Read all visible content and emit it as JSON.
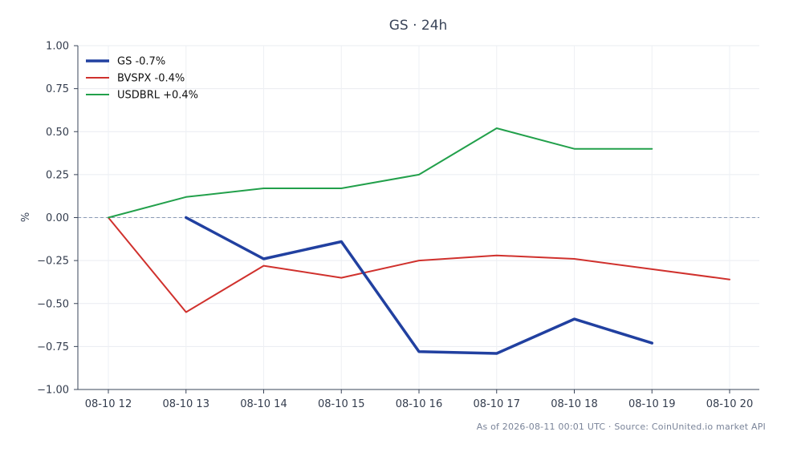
{
  "chart_data": {
    "type": "line",
    "title": "GS · 24h",
    "xlabel": "",
    "ylabel": "%",
    "x": [
      "08-10 12",
      "08-10 13",
      "08-10 14",
      "08-10 15",
      "08-10 16",
      "08-10 17",
      "08-10 18",
      "08-10 19",
      "08-10 20"
    ],
    "ylim": [
      -1.0,
      1.0
    ],
    "yticks": [
      "1.00",
      "0.75",
      "0.50",
      "0.25",
      "0.00",
      "−0.25",
      "−0.50",
      "−0.75",
      "−1.00"
    ],
    "ytick_values": [
      1.0,
      0.75,
      0.5,
      0.25,
      0.0,
      -0.25,
      -0.5,
      -0.75,
      -1.0
    ],
    "grid": true,
    "legend_position": "top-left",
    "zero_line": true,
    "series": [
      {
        "name": "GS -0.7%",
        "color": "#2140a0",
        "emphasis": true,
        "values": [
          null,
          0.0,
          -0.24,
          -0.14,
          -0.78,
          -0.79,
          -0.59,
          -0.73,
          null
        ]
      },
      {
        "name": "BVSPX -0.4%",
        "color": "#d0312d",
        "emphasis": false,
        "values": [
          0.0,
          -0.55,
          -0.28,
          -0.35,
          -0.25,
          -0.22,
          -0.24,
          -0.3,
          -0.36
        ]
      },
      {
        "name": "USDBRL +0.4%",
        "color": "#22a04b",
        "emphasis": false,
        "values": [
          0.0,
          0.12,
          0.17,
          0.17,
          0.25,
          0.52,
          0.4,
          0.4,
          null
        ]
      }
    ]
  },
  "footer": "As of 2026-08-11 00:01 UTC · Source: CoinUnited.io market API"
}
